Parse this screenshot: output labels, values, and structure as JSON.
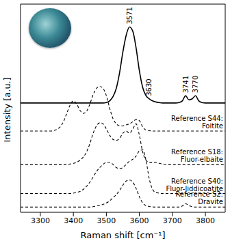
{
  "chart_data": {
    "type": "line",
    "x_label": "Raman shift [cm⁻¹]",
    "y_label": "Intensity [a.u.]",
    "xlim": [
      3240,
      3860
    ],
    "xticks": [
      3300,
      3400,
      3500,
      3600,
      3700,
      3800
    ],
    "ylim": [
      0,
      10
    ],
    "tick_labels": "x",
    "grid": false,
    "peak_labels": [
      3571,
      3630,
      3741,
      3770
    ],
    "x": [
      3240,
      3250,
      3260,
      3270,
      3280,
      3290,
      3300,
      3310,
      3320,
      3330,
      3340,
      3350,
      3360,
      3370,
      3380,
      3390,
      3400,
      3410,
      3420,
      3430,
      3440,
      3450,
      3460,
      3470,
      3480,
      3490,
      3500,
      3510,
      3520,
      3530,
      3540,
      3550,
      3560,
      3570,
      3580,
      3590,
      3600,
      3610,
      3620,
      3630,
      3640,
      3650,
      3660,
      3670,
      3680,
      3690,
      3700,
      3710,
      3720,
      3730,
      3740,
      3750,
      3760,
      3770,
      3780,
      3790,
      3800,
      3810,
      3820,
      3830,
      3840,
      3850,
      3860
    ],
    "series": [
      {
        "color": "#000000",
        "line_style": "solid",
        "values": [
          5.25,
          5.25,
          5.25,
          5.25,
          5.25,
          5.25,
          5.25,
          5.25,
          5.25,
          5.25,
          5.25,
          5.25,
          5.25,
          5.25,
          5.25,
          5.25,
          5.25,
          5.25,
          5.25,
          5.25,
          5.25,
          5.25,
          5.25,
          5.25,
          5.25,
          5.25,
          5.27,
          5.35,
          5.55,
          5.95,
          6.7,
          7.7,
          8.5,
          8.9,
          8.7,
          7.9,
          6.8,
          6.0,
          5.6,
          5.45,
          5.35,
          5.3,
          5.27,
          5.25,
          5.25,
          5.25,
          5.25,
          5.25,
          5.27,
          5.35,
          5.6,
          5.4,
          5.45,
          5.6,
          5.35,
          5.27,
          5.25,
          5.25,
          5.25,
          5.25,
          5.25,
          5.25,
          5.25
        ]
      },
      {
        "name": "Reference S44: Foitite",
        "color": "#000000",
        "line_style": "dashed",
        "values": [
          3.9,
          3.9,
          3.9,
          3.9,
          3.9,
          3.9,
          3.9,
          3.9,
          3.9,
          3.9,
          3.92,
          3.98,
          4.1,
          4.35,
          4.75,
          5.15,
          5.35,
          5.2,
          4.9,
          4.75,
          4.85,
          5.2,
          5.65,
          5.95,
          6.05,
          5.95,
          5.6,
          5.0,
          4.5,
          4.25,
          4.15,
          4.15,
          4.2,
          4.25,
          4.35,
          4.45,
          4.4,
          4.1,
          3.95,
          3.92,
          3.9,
          3.9,
          3.9,
          3.9,
          3.9,
          3.9,
          3.9,
          3.9,
          3.9,
          3.9,
          3.9,
          3.9,
          3.9,
          3.9,
          3.9,
          3.9,
          3.9,
          3.9,
          3.9,
          3.9,
          3.9,
          3.9,
          3.9
        ]
      },
      {
        "name": "Reference S18: Fluor-elbaite",
        "color": "#000000",
        "line_style": "dashed",
        "values": [
          2.3,
          2.3,
          2.3,
          2.3,
          2.3,
          2.3,
          2.3,
          2.3,
          2.3,
          2.3,
          2.3,
          2.3,
          2.3,
          2.3,
          2.3,
          2.32,
          2.35,
          2.4,
          2.5,
          2.65,
          2.9,
          3.3,
          3.8,
          4.15,
          4.3,
          4.25,
          4.0,
          3.7,
          3.5,
          3.45,
          3.55,
          3.8,
          3.9,
          3.8,
          4.0,
          4.25,
          3.7,
          2.9,
          2.5,
          2.4,
          2.38,
          2.4,
          2.35,
          2.32,
          2.3,
          2.3,
          2.3,
          2.3,
          2.3,
          2.3,
          2.3,
          2.3,
          2.3,
          2.3,
          2.3,
          2.3,
          2.3,
          2.3,
          2.3,
          2.3,
          2.3,
          2.3,
          2.3
        ]
      },
      {
        "name": "Reference S40: Fluor-liddicoatite",
        "color": "#000000",
        "line_style": "dashed",
        "values": [
          0.9,
          0.9,
          0.9,
          0.9,
          0.9,
          0.9,
          0.9,
          0.9,
          0.9,
          0.9,
          0.9,
          0.9,
          0.9,
          0.9,
          0.9,
          0.9,
          0.92,
          0.95,
          1.0,
          1.1,
          1.25,
          1.45,
          1.7,
          1.95,
          2.15,
          2.3,
          2.4,
          2.4,
          2.3,
          2.15,
          2.1,
          2.15,
          2.3,
          2.45,
          2.55,
          2.7,
          2.95,
          3.0,
          2.5,
          1.6,
          1.1,
          0.95,
          0.92,
          0.9,
          0.9,
          0.9,
          0.9,
          0.9,
          0.9,
          0.9,
          0.9,
          0.9,
          0.9,
          0.9,
          0.9,
          0.9,
          0.9,
          0.9,
          0.9,
          0.9,
          0.9,
          0.9,
          0.9
        ]
      },
      {
        "name": "Reference S2: Dravite",
        "color": "#000000",
        "line_style": "dashed",
        "values": [
          0.25,
          0.25,
          0.25,
          0.25,
          0.25,
          0.25,
          0.25,
          0.25,
          0.25,
          0.25,
          0.25,
          0.25,
          0.25,
          0.25,
          0.25,
          0.25,
          0.25,
          0.25,
          0.25,
          0.25,
          0.25,
          0.25,
          0.27,
          0.3,
          0.33,
          0.38,
          0.45,
          0.55,
          0.7,
          0.85,
          1.05,
          1.3,
          1.5,
          1.55,
          1.45,
          1.15,
          0.75,
          0.45,
          0.32,
          0.28,
          0.26,
          0.25,
          0.25,
          0.25,
          0.25,
          0.25,
          0.25,
          0.25,
          0.25,
          0.3,
          0.42,
          0.32,
          0.27,
          0.25,
          0.25,
          0.25,
          0.25,
          0.25,
          0.25,
          0.25,
          0.25,
          0.25,
          0.25
        ]
      }
    ]
  }
}
